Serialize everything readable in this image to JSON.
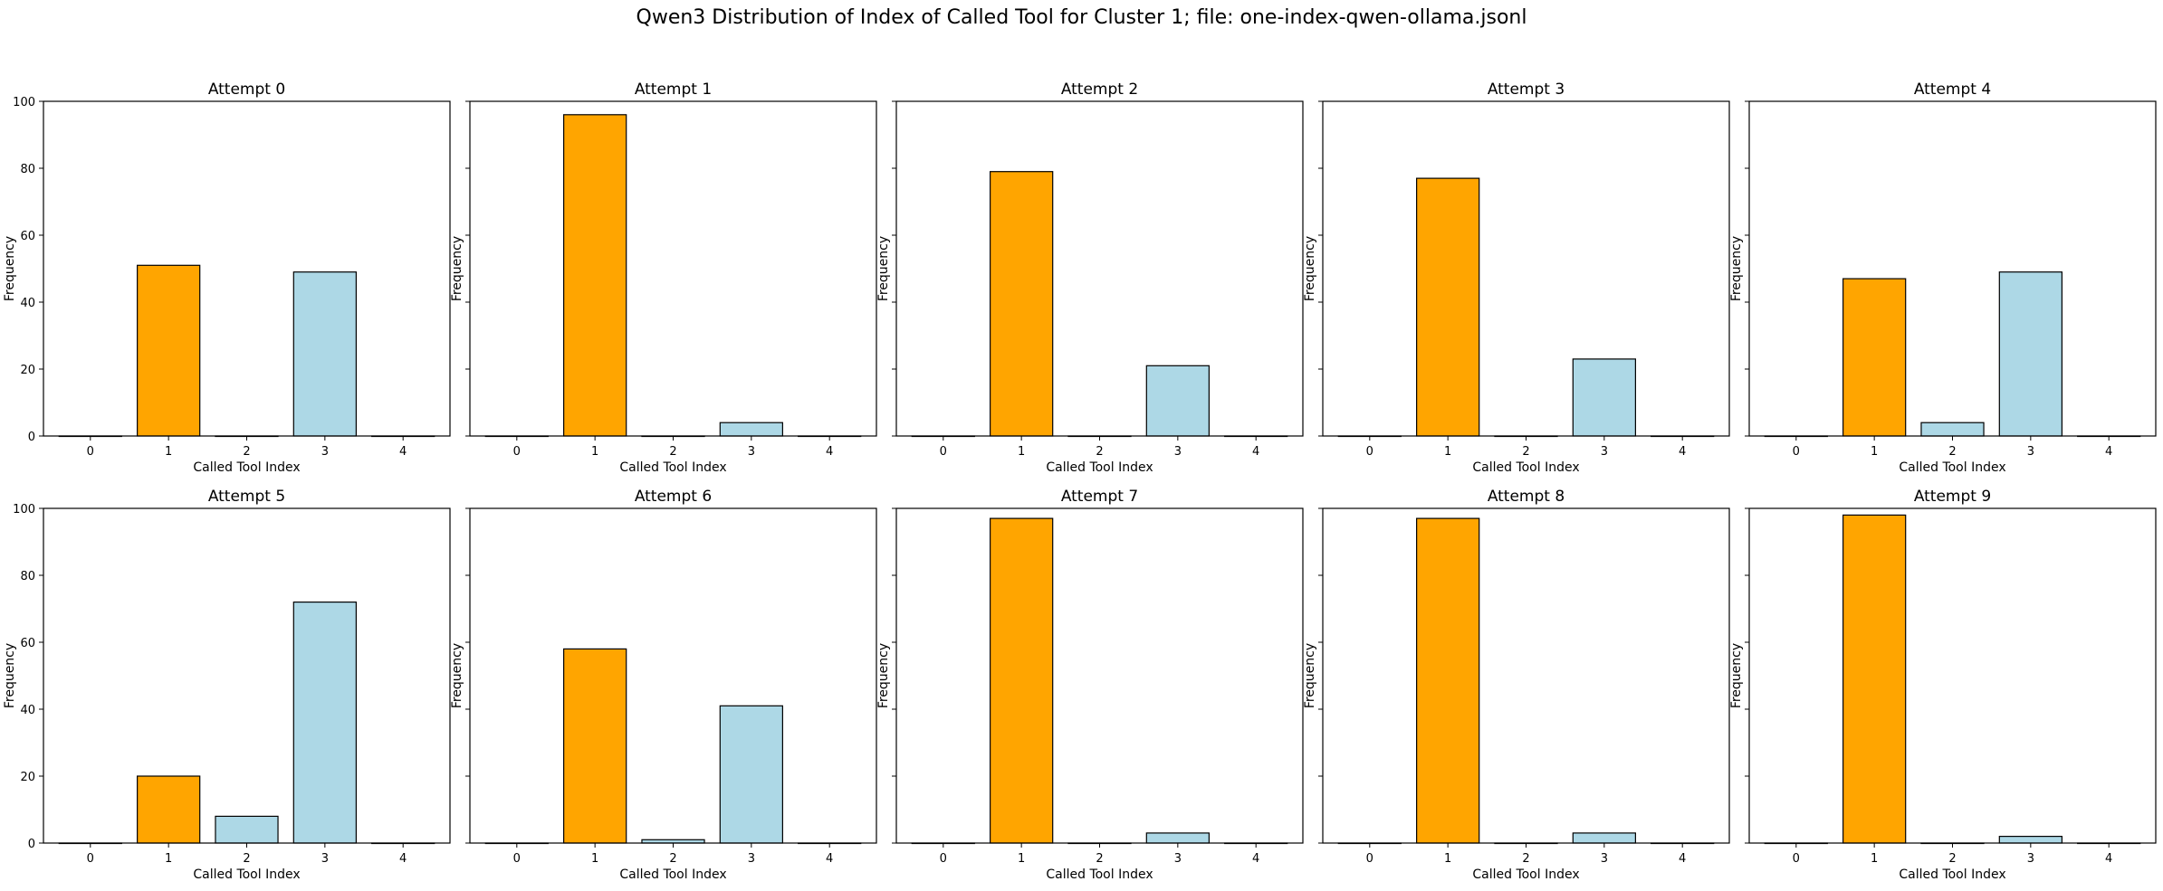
{
  "figure": {
    "suptitle": "Qwen3 Distribution of Index of Called Tool for Cluster 1; file: one-index-qwen-ollama.jsonl"
  },
  "colors": {
    "orange": "#FFA500",
    "lightblue": "#ADD8E6",
    "edge": "#000000",
    "background": "#FFFFFF"
  },
  "chart_data": [
    {
      "type": "bar",
      "title": "Attempt 0",
      "xlabel": "Called Tool Index",
      "ylabel": "Frequency",
      "categories": [
        "0",
        "1",
        "2",
        "3",
        "4"
      ],
      "values": [
        0,
        51,
        0,
        49,
        0
      ],
      "bar_colors": [
        "lightblue",
        "orange",
        "lightblue",
        "lightblue",
        "lightblue"
      ],
      "ylim": [
        0,
        100
      ],
      "yticks": [
        0,
        20,
        40,
        60,
        80,
        100
      ],
      "show_ytick_labels": true,
      "grid": false
    },
    {
      "type": "bar",
      "title": "Attempt 1",
      "xlabel": "Called Tool Index",
      "ylabel": "Frequency",
      "categories": [
        "0",
        "1",
        "2",
        "3",
        "4"
      ],
      "values": [
        0,
        96,
        0,
        4,
        0
      ],
      "bar_colors": [
        "lightblue",
        "orange",
        "lightblue",
        "lightblue",
        "lightblue"
      ],
      "ylim": [
        0,
        100
      ],
      "yticks": [
        0,
        20,
        40,
        60,
        80,
        100
      ],
      "show_ytick_labels": false,
      "grid": false
    },
    {
      "type": "bar",
      "title": "Attempt 2",
      "xlabel": "Called Tool Index",
      "ylabel": "Frequency",
      "categories": [
        "0",
        "1",
        "2",
        "3",
        "4"
      ],
      "values": [
        0,
        79,
        0,
        21,
        0
      ],
      "bar_colors": [
        "lightblue",
        "orange",
        "lightblue",
        "lightblue",
        "lightblue"
      ],
      "ylim": [
        0,
        100
      ],
      "yticks": [
        0,
        20,
        40,
        60,
        80,
        100
      ],
      "show_ytick_labels": false,
      "grid": false
    },
    {
      "type": "bar",
      "title": "Attempt 3",
      "xlabel": "Called Tool Index",
      "ylabel": "Frequency",
      "categories": [
        "0",
        "1",
        "2",
        "3",
        "4"
      ],
      "values": [
        0,
        77,
        0,
        23,
        0
      ],
      "bar_colors": [
        "lightblue",
        "orange",
        "lightblue",
        "lightblue",
        "lightblue"
      ],
      "ylim": [
        0,
        100
      ],
      "yticks": [
        0,
        20,
        40,
        60,
        80,
        100
      ],
      "show_ytick_labels": false,
      "grid": false
    },
    {
      "type": "bar",
      "title": "Attempt 4",
      "xlabel": "Called Tool Index",
      "ylabel": "Frequency",
      "categories": [
        "0",
        "1",
        "2",
        "3",
        "4"
      ],
      "values": [
        0,
        47,
        4,
        49,
        0
      ],
      "bar_colors": [
        "lightblue",
        "orange",
        "lightblue",
        "lightblue",
        "lightblue"
      ],
      "ylim": [
        0,
        100
      ],
      "yticks": [
        0,
        20,
        40,
        60,
        80,
        100
      ],
      "show_ytick_labels": false,
      "grid": false
    },
    {
      "type": "bar",
      "title": "Attempt 5",
      "xlabel": "Called Tool Index",
      "ylabel": "Frequency",
      "categories": [
        "0",
        "1",
        "2",
        "3",
        "4"
      ],
      "values": [
        0,
        20,
        8,
        72,
        0
      ],
      "bar_colors": [
        "lightblue",
        "orange",
        "lightblue",
        "lightblue",
        "lightblue"
      ],
      "ylim": [
        0,
        100
      ],
      "yticks": [
        0,
        20,
        40,
        60,
        80,
        100
      ],
      "show_ytick_labels": true,
      "grid": false
    },
    {
      "type": "bar",
      "title": "Attempt 6",
      "xlabel": "Called Tool Index",
      "ylabel": "Frequency",
      "categories": [
        "0",
        "1",
        "2",
        "3",
        "4"
      ],
      "values": [
        0,
        58,
        1,
        41,
        0
      ],
      "bar_colors": [
        "lightblue",
        "orange",
        "lightblue",
        "lightblue",
        "lightblue"
      ],
      "ylim": [
        0,
        100
      ],
      "yticks": [
        0,
        20,
        40,
        60,
        80,
        100
      ],
      "show_ytick_labels": false,
      "grid": false
    },
    {
      "type": "bar",
      "title": "Attempt 7",
      "xlabel": "Called Tool Index",
      "ylabel": "Frequency",
      "categories": [
        "0",
        "1",
        "2",
        "3",
        "4"
      ],
      "values": [
        0,
        97,
        0,
        3,
        0
      ],
      "bar_colors": [
        "lightblue",
        "orange",
        "lightblue",
        "lightblue",
        "lightblue"
      ],
      "ylim": [
        0,
        100
      ],
      "yticks": [
        0,
        20,
        40,
        60,
        80,
        100
      ],
      "show_ytick_labels": false,
      "grid": false
    },
    {
      "type": "bar",
      "title": "Attempt 8",
      "xlabel": "Called Tool Index",
      "ylabel": "Frequency",
      "categories": [
        "0",
        "1",
        "2",
        "3",
        "4"
      ],
      "values": [
        0,
        97,
        0,
        3,
        0
      ],
      "bar_colors": [
        "lightblue",
        "orange",
        "lightblue",
        "lightblue",
        "lightblue"
      ],
      "ylim": [
        0,
        100
      ],
      "yticks": [
        0,
        20,
        40,
        60,
        80,
        100
      ],
      "show_ytick_labels": false,
      "grid": false
    },
    {
      "type": "bar",
      "title": "Attempt 9",
      "xlabel": "Called Tool Index",
      "ylabel": "Frequency",
      "categories": [
        "0",
        "1",
        "2",
        "3",
        "4"
      ],
      "values": [
        0,
        98,
        0,
        2,
        0
      ],
      "bar_colors": [
        "lightblue",
        "orange",
        "lightblue",
        "lightblue",
        "lightblue"
      ],
      "ylim": [
        0,
        100
      ],
      "yticks": [
        0,
        20,
        40,
        60,
        80,
        100
      ],
      "show_ytick_labels": false,
      "grid": false
    }
  ]
}
